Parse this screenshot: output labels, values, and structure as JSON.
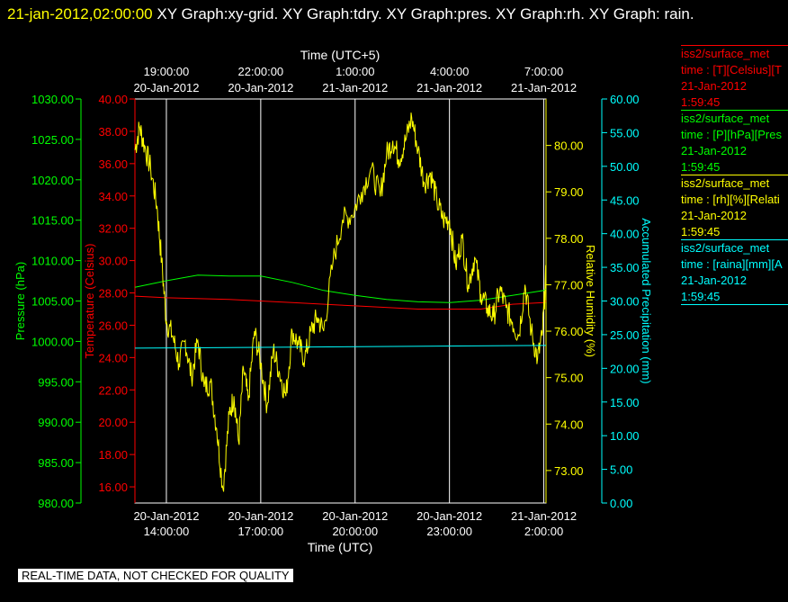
{
  "header": {
    "timestamp": "21-jan-2012,02:00:00",
    "title_rest": "XY Graph:xy-grid.  XY Graph:tdry.  XY Graph:pres.  XY Graph:rh.  XY Graph: rain."
  },
  "legend": [
    {
      "line1": "iss2/surface_met",
      "line2": "time : [T][Celsius][T",
      "line3": "21-Jan-2012",
      "line4": "1:59:45",
      "color": "#ff0000"
    },
    {
      "line1": "iss2/surface_met",
      "line2": "time : [P][hPa][Pres",
      "line3": "21-Jan-2012",
      "line4": "1:59:45",
      "color": "#00ff00"
    },
    {
      "line1": "iss2/surface_met",
      "line2": "time : [rh][%][Relati",
      "line3": "21-Jan-2012",
      "line4": "1:59:45",
      "color": "#ffff00"
    },
    {
      "line1": "iss2/surface_met",
      "line2": "time : [raina][mm][A",
      "line3": "21-Jan-2012",
      "line4": "1:59:45",
      "color": "#00ffff"
    }
  ],
  "footer": "REAL-TIME DATA, NOT CHECKED FOR QUALITY",
  "chart_data": {
    "type": "line",
    "x_range_utc_hours": [
      13.0,
      2.07
    ],
    "xlabel_bottom": "Time (UTC)",
    "xlabel_top": "Time (UTC+5)",
    "x_ticks_bottom": [
      {
        "date": "20-Jan-2012",
        "time": "14:00:00"
      },
      {
        "date": "20-Jan-2012",
        "time": "17:00:00"
      },
      {
        "date": "20-Jan-2012",
        "time": "20:00:00"
      },
      {
        "date": "20-Jan-2012",
        "time": "23:00:00"
      },
      {
        "date": "21-Jan-2012",
        "time": "2:00:00"
      }
    ],
    "x_ticks_top": [
      {
        "time": "19:00:00",
        "date": "20-Jan-2012"
      },
      {
        "time": "22:00:00",
        "date": "20-Jan-2012"
      },
      {
        "time": "1:00:00",
        "date": "21-Jan-2012"
      },
      {
        "time": "4:00:00",
        "date": "21-Jan-2012"
      },
      {
        "time": "7:00:00",
        "date": "21-Jan-2012"
      }
    ],
    "axes": {
      "pressure": {
        "label": "Pressure (hPa)",
        "range": [
          980,
          1030
        ],
        "ticks": [
          "980.00",
          "985.00",
          "990.00",
          "995.00",
          "1000.00",
          "1005.00",
          "1010.00",
          "1015.00",
          "1020.00",
          "1025.00",
          "1030.00"
        ],
        "color": "#00ff00"
      },
      "temperature": {
        "label": "Temperature (Celsius)",
        "range": [
          15,
          40
        ],
        "ticks": [
          "16.00",
          "18.00",
          "20.00",
          "22.00",
          "24.00",
          "26.00",
          "28.00",
          "30.00",
          "32.00",
          "34.00",
          "36.00",
          "38.00",
          "40.00"
        ],
        "color": "#ff0000"
      },
      "humidity": {
        "label": "Relative Humidity (%)",
        "range": [
          72.3,
          81.0
        ],
        "ticks": [
          "73.00",
          "74.00",
          "75.00",
          "76.00",
          "77.00",
          "78.00",
          "79.00",
          "80.00"
        ],
        "color": "#ffff00"
      },
      "precipitation": {
        "label": "Accumulated Precipitation (mm)",
        "range": [
          0,
          60
        ],
        "ticks": [
          "0.00",
          "5.00",
          "10.00",
          "15.00",
          "20.00",
          "25.00",
          "30.00",
          "35.00",
          "40.00",
          "45.00",
          "50.00",
          "55.00",
          "60.00"
        ],
        "color": "#00ffff"
      }
    },
    "series": [
      {
        "name": "iss2/surface_met T",
        "color": "#ff0000",
        "axis": "temperature",
        "x": [
          13.0,
          14.0,
          16.0,
          18.0,
          20.0,
          22.0,
          24.0,
          25.0,
          26.0,
          26.07
        ],
        "y": [
          27.8,
          27.7,
          27.6,
          27.4,
          27.2,
          27.0,
          27.0,
          27.3,
          27.4,
          27.5
        ]
      },
      {
        "name": "iss2/surface_met P",
        "color": "#00ff00",
        "axis": "pressure",
        "x": [
          13.0,
          14.0,
          15.0,
          16.0,
          17.0,
          18.0,
          19.0,
          20.0,
          21.0,
          22.0,
          23.0,
          24.0,
          25.0,
          26.0,
          26.07
        ],
        "y": [
          1006.7,
          1007.5,
          1008.2,
          1008.1,
          1008.1,
          1007.3,
          1006.3,
          1005.7,
          1005.2,
          1004.9,
          1004.8,
          1005.1,
          1005.7,
          1006.3,
          1006.5
        ]
      },
      {
        "name": "iss2/surface_met rh",
        "color": "#ffff00",
        "axis": "humidity",
        "x": [
          13.0,
          13.15,
          13.3,
          13.5,
          13.7,
          13.85,
          14.0,
          14.2,
          14.4,
          14.6,
          14.8,
          15.0,
          15.2,
          15.4,
          15.6,
          15.8,
          16.0,
          16.15,
          16.3,
          16.45,
          16.6,
          16.8,
          17.0,
          17.2,
          17.4,
          17.6,
          17.8,
          18.0,
          18.2,
          18.4,
          18.6,
          18.8,
          19.0,
          19.3,
          19.6,
          19.9,
          20.2,
          20.5,
          20.8,
          21.0,
          21.2,
          21.4,
          21.6,
          21.8,
          22.0,
          22.2,
          22.4,
          22.6,
          22.8,
          23.0,
          23.2,
          23.4,
          23.6,
          23.8,
          24.0,
          24.2,
          24.4,
          24.6,
          24.8,
          25.0,
          25.2,
          25.4,
          25.6,
          25.8,
          25.95,
          26.07
        ],
        "y": [
          79.9,
          80.4,
          80.0,
          79.5,
          78.7,
          77.5,
          76.2,
          75.9,
          75.3,
          75.8,
          75.0,
          75.8,
          74.8,
          74.9,
          73.9,
          72.6,
          74.2,
          74.6,
          73.6,
          75.2,
          74.5,
          76.0,
          75.3,
          74.4,
          75.6,
          75.1,
          74.6,
          76.0,
          75.7,
          75.4,
          76.0,
          76.3,
          76.0,
          77.5,
          78.4,
          78.5,
          79.0,
          79.5,
          78.9,
          79.8,
          80.1,
          79.7,
          80.1,
          80.6,
          79.9,
          79.2,
          79.4,
          78.8,
          78.4,
          78.4,
          77.4,
          78.0,
          77.0,
          77.6,
          76.8,
          76.5,
          76.3,
          76.9,
          76.5,
          76.2,
          75.9,
          77.0,
          76.0,
          75.4,
          75.9,
          77.3
        ]
      },
      {
        "name": "iss2/surface_met raina",
        "color": "#00ffff",
        "axis": "precipitation",
        "x": [
          13.0,
          26.07
        ],
        "y": [
          23.0,
          23.4
        ]
      }
    ],
    "grid": true
  }
}
